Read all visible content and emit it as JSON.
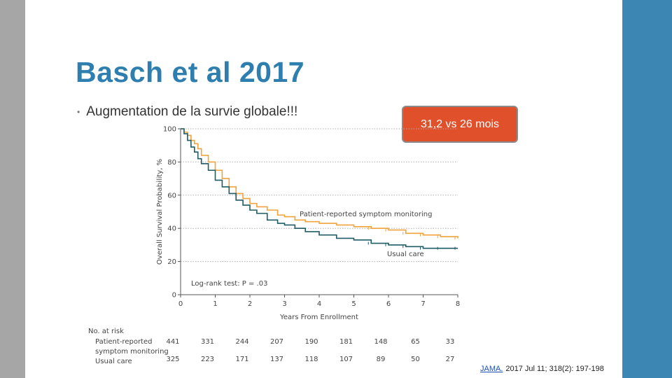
{
  "slide": {
    "title": "Basch et al 2017",
    "bullet": "Augmentation de la survie globale!!!",
    "callout": "31,2 vs 26 mois",
    "citation": {
      "link": "JAMA.",
      "rest": "2017 Jul 11; 318(2): 197-198"
    }
  },
  "chart_data": {
    "type": "line",
    "xlabel": "Years From Enrollment",
    "ylabel": "Overall Survival Probability, %",
    "xlim": [
      0,
      8
    ],
    "ylim": [
      0,
      100
    ],
    "x_ticks": [
      0,
      1,
      2,
      3,
      4,
      5,
      6,
      7,
      8
    ],
    "y_ticks": [
      0,
      20,
      40,
      60,
      80,
      100
    ],
    "grid": "horizontal-dotted",
    "annotation": "Log-rank test: P = .03",
    "series": [
      {
        "name": "Patient-reported symptom monitoring",
        "color": "#f0a33c",
        "x": [
          0,
          0.1,
          0.2,
          0.3,
          0.4,
          0.5,
          0.6,
          0.8,
          1.0,
          1.2,
          1.4,
          1.6,
          1.8,
          2.0,
          2.2,
          2.5,
          2.8,
          3.0,
          3.3,
          3.6,
          4.0,
          4.5,
          5.0,
          5.5,
          6.0,
          6.5,
          7.0,
          7.5,
          8.0
        ],
        "y": [
          100,
          98,
          96,
          93,
          91,
          88,
          84,
          80,
          75,
          70,
          65,
          61,
          58,
          55,
          53,
          51,
          48,
          47,
          45,
          44,
          43,
          42,
          41,
          40,
          39,
          37,
          36,
          35,
          34
        ]
      },
      {
        "name": "Usual care",
        "color": "#1f5c66",
        "x": [
          0,
          0.1,
          0.2,
          0.3,
          0.4,
          0.5,
          0.6,
          0.8,
          1.0,
          1.2,
          1.4,
          1.6,
          1.8,
          2.0,
          2.2,
          2.5,
          2.8,
          3.0,
          3.3,
          3.6,
          4.0,
          4.5,
          5.0,
          5.5,
          6.0,
          6.5,
          7.0,
          7.5,
          8.0
        ],
        "y": [
          100,
          97,
          93,
          89,
          86,
          82,
          79,
          75,
          69,
          65,
          61,
          57,
          54,
          51,
          49,
          45,
          43,
          42,
          40,
          38,
          36,
          34,
          33,
          31,
          30,
          29,
          28,
          28,
          28
        ]
      }
    ],
    "risk_table": {
      "title": "No. at risk",
      "rows": [
        {
          "label_lines": [
            "Patient-reported",
            "symptom monitoring"
          ],
          "values": [
            "441",
            "331",
            "244",
            "207",
            "190",
            "181",
            "148",
            "65",
            "33"
          ]
        },
        {
          "label_lines": [
            "Usual care"
          ],
          "values": [
            "325",
            "223",
            "171",
            "137",
            "118",
            "107",
            "89",
            "50",
            "27"
          ]
        }
      ]
    }
  }
}
